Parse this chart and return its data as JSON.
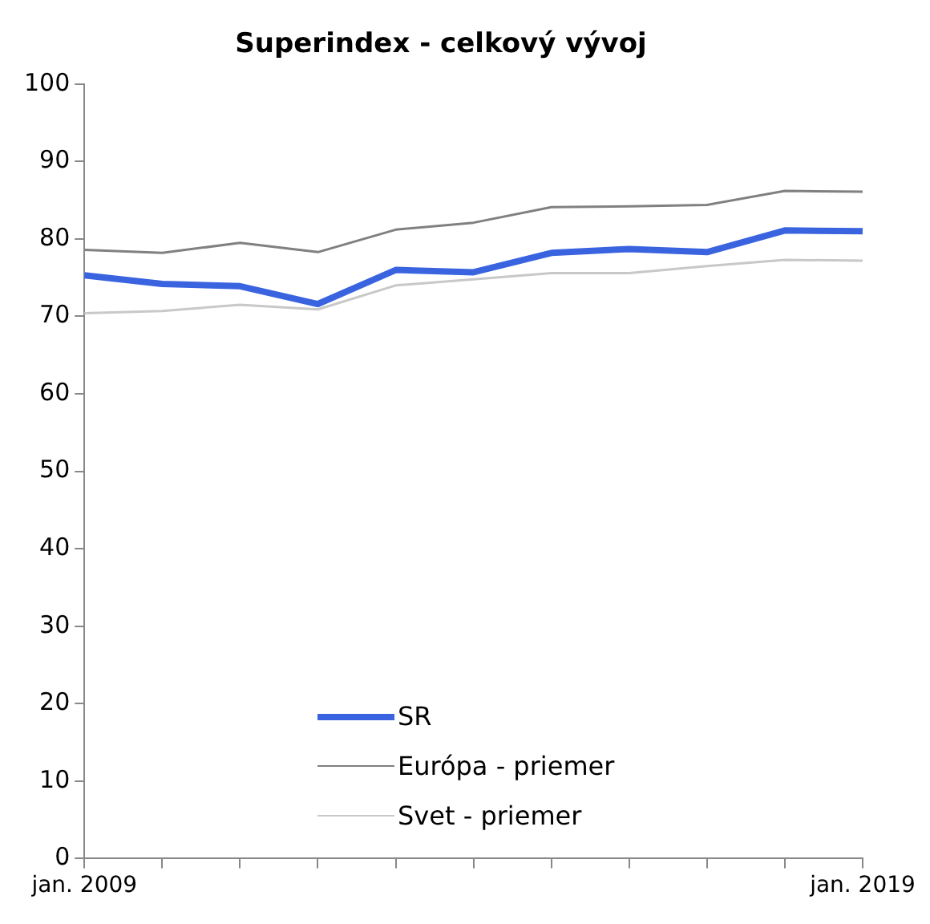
{
  "chart_data": {
    "type": "line",
    "title": "Superindex - celkový vývoj",
    "categories": [
      "jan. 2009",
      null,
      null,
      null,
      null,
      null,
      null,
      null,
      null,
      null,
      "jan. 2019"
    ],
    "series": [
      {
        "name": "SR",
        "color": "#3a63e0",
        "values": [
          75.3,
          74.2,
          73.9,
          71.6,
          76.0,
          75.7,
          78.2,
          78.7,
          78.3,
          81.1,
          81.0
        ]
      },
      {
        "name": "Európa - priemer",
        "color": "#808080",
        "values": [
          78.6,
          78.2,
          79.5,
          78.3,
          81.2,
          82.1,
          84.1,
          84.2,
          84.4,
          86.2,
          86.1
        ]
      },
      {
        "name": "Svet - priemer",
        "color": "#c8c8c8",
        "values": [
          70.4,
          70.7,
          71.5,
          70.9,
          74.0,
          74.8,
          75.6,
          75.6,
          76.5,
          77.3,
          77.2
        ]
      }
    ],
    "ylim": [
      0,
      100
    ],
    "yticks": [
      0,
      10,
      20,
      30,
      40,
      50,
      60,
      70,
      80,
      90,
      100
    ],
    "grid": false,
    "legend": "bottom left",
    "marker": "none",
    "line_style": "solid"
  }
}
